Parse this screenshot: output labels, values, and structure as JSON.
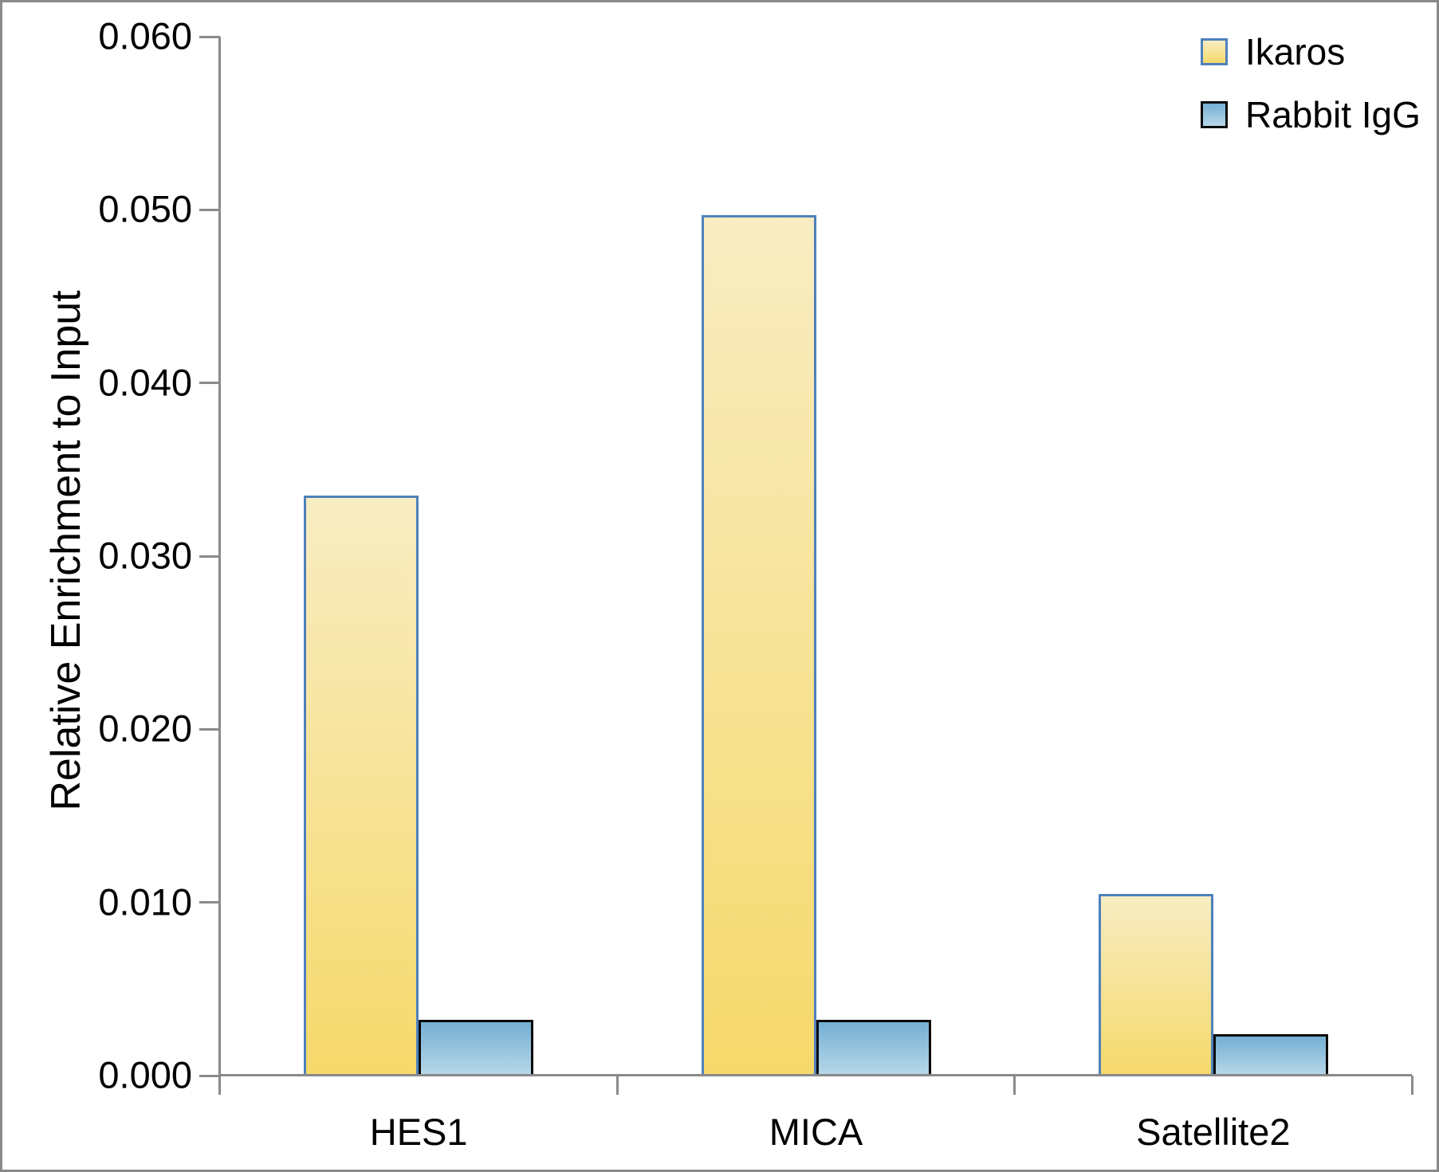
{
  "chart_data": {
    "type": "bar",
    "title": "",
    "categories": [
      "HES1",
      "MICA",
      "Satellite2"
    ],
    "series": [
      {
        "name": "Ikaros",
        "values": [
          0.0335,
          0.0497,
          0.0105
        ],
        "fill_top": "#F8EDC3",
        "fill_bottom": "#F6D96B",
        "border_color": "#4E81BC"
      },
      {
        "name": "Rabbit IgG",
        "values": [
          0.0032,
          0.0032,
          0.0024
        ],
        "fill_top": "#74AFD4",
        "fill_bottom": "#B8D8E9",
        "border_color": "#0A0A0A"
      }
    ],
    "xlabel": "",
    "ylabel": "Relative Enrichment to Input",
    "ylim": [
      0,
      0.06
    ],
    "ytick_interval": 0.01,
    "ytick_labels": [
      "0.000",
      "0.010",
      "0.020",
      "0.030",
      "0.040",
      "0.050",
      "0.060"
    ],
    "grid": false,
    "legend_position": "top-right",
    "axis_color": "#8A8A8A",
    "text_color": "#000000"
  }
}
